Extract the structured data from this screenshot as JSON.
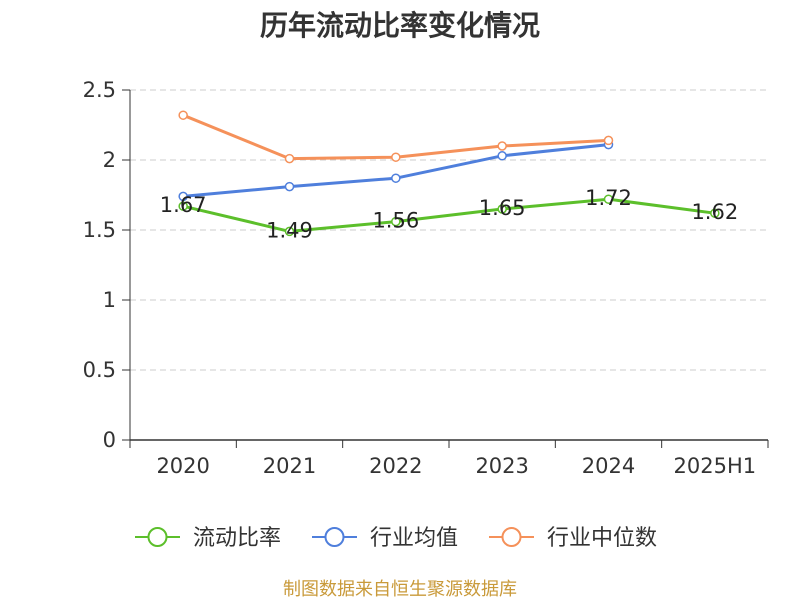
{
  "chart_data": {
    "type": "line",
    "title": "历年流动比率变化情况",
    "categories": [
      "2020",
      "2021",
      "2022",
      "2023",
      "2024",
      "2025H1"
    ],
    "series": [
      {
        "name": "流动比率",
        "values": [
          1.67,
          1.49,
          1.56,
          1.65,
          1.72,
          1.62
        ],
        "color": "#5cbf2b",
        "show_labels": true
      },
      {
        "name": "行业均值",
        "values": [
          1.74,
          1.81,
          1.87,
          2.03,
          2.11,
          null
        ],
        "color": "#4f7fdc",
        "show_labels": false
      },
      {
        "name": "行业中位数",
        "values": [
          2.32,
          2.01,
          2.02,
          2.1,
          2.14,
          null
        ],
        "color": "#f5915a",
        "show_labels": false
      }
    ],
    "yticks": [
      0,
      0.5,
      1,
      1.5,
      2,
      2.5
    ],
    "ylim": [
      0,
      2.5
    ],
    "grid": true,
    "legend": "bottom"
  },
  "footer": "制图数据来自恒生聚源数据库"
}
